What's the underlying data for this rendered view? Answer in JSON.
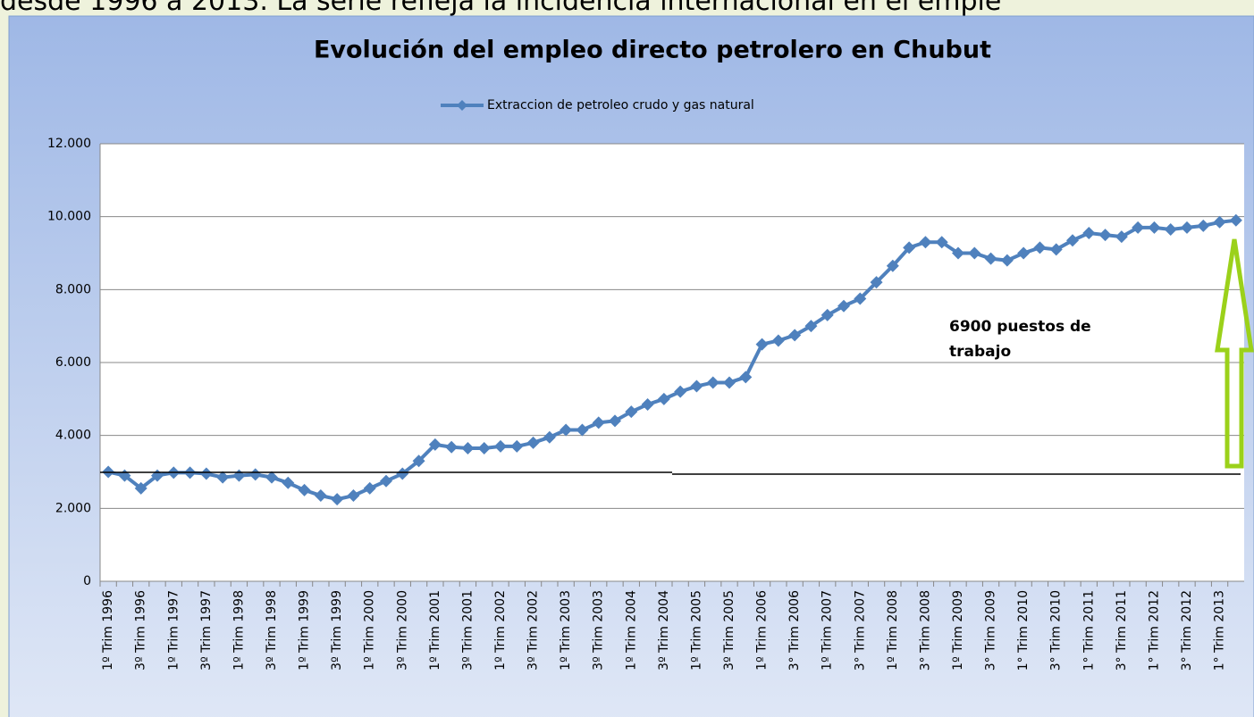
{
  "header_text": "desde 1996 a 2013. La serie refleja la incidencia internacional en el emple",
  "chart_data": {
    "type": "line",
    "title": "Evolución del empleo directo petrolero en Chubut",
    "categories": [
      "1º Trim 1996",
      null,
      "3º Trim 1996",
      null,
      "1º Trim 1997",
      null,
      "3º Trim 1997",
      null,
      "1º Trim 1998",
      null,
      "3º Trim 1998",
      null,
      "1º Trim 1999",
      null,
      "3º Trim 1999",
      null,
      "1º Trim 2000",
      null,
      "3º Trim 2000",
      null,
      "1º Trim 2001",
      null,
      "3º Trim 2001",
      null,
      "1º Trim 2002",
      null,
      "3º Trim 2002",
      null,
      "1º Trim 2003",
      null,
      "3º Trim 2003",
      null,
      "1º Trim 2004",
      null,
      "3º Trim 2004",
      null,
      "1º Trim 2005",
      null,
      "3º Trim 2005",
      null,
      "1º Trim 2006",
      null,
      "3° Trim 2006",
      null,
      "1º Trim 2007",
      null,
      "3° Trim 2007",
      null,
      "1º Trim 2008",
      null,
      "3° Trim 2008",
      null,
      "1º Trim 2009",
      null,
      "3° Trim 2009",
      null,
      "1° Trim 2010",
      null,
      "3° Trim 2010",
      null,
      "1° Trim 2011",
      null,
      "3° Trim 2011",
      null,
      "1° Trim 2012",
      null,
      "3° Trim 2012",
      null,
      "1° Trim 2013",
      null
    ],
    "series": [
      {
        "name": "Extraccion de petroleo crudo y gas natural",
        "color": "#4f81bd",
        "values": [
          3000,
          2900,
          2550,
          2900,
          2980,
          2980,
          2950,
          2850,
          2900,
          2930,
          2850,
          2700,
          2500,
          2350,
          2250,
          2350,
          2550,
          2750,
          2950,
          3300,
          3750,
          3680,
          3650,
          3650,
          3700,
          3700,
          3800,
          3950,
          4150,
          4150,
          4350,
          4400,
          4650,
          4850,
          5000,
          5200,
          5350,
          5450,
          5450,
          5600,
          6500,
          6600,
          6750,
          7000,
          7300,
          7550,
          7750,
          8200,
          8650,
          9150,
          9300,
          9300,
          9000,
          9000,
          8850,
          8800,
          9000,
          9150,
          9100,
          9350,
          9550,
          9500,
          9450,
          9700,
          9700,
          9650,
          9700,
          9750,
          9850,
          9900
        ]
      }
    ],
    "ylim": [
      0,
      12000
    ],
    "yticks": [
      0,
      {
        "value": 2000,
        "label": "2.000"
      },
      {
        "value": 4000,
        "label": "4.000"
      },
      {
        "value": 6000,
        "label": "6.000"
      },
      {
        "value": 8000,
        "label": "8.000"
      },
      {
        "value": 10000,
        "label": "10.000"
      },
      {
        "value": 12000,
        "label": "12.000"
      }
    ],
    "grid": true,
    "legend": "top",
    "annotation": "6900 puestos de trabajo"
  }
}
